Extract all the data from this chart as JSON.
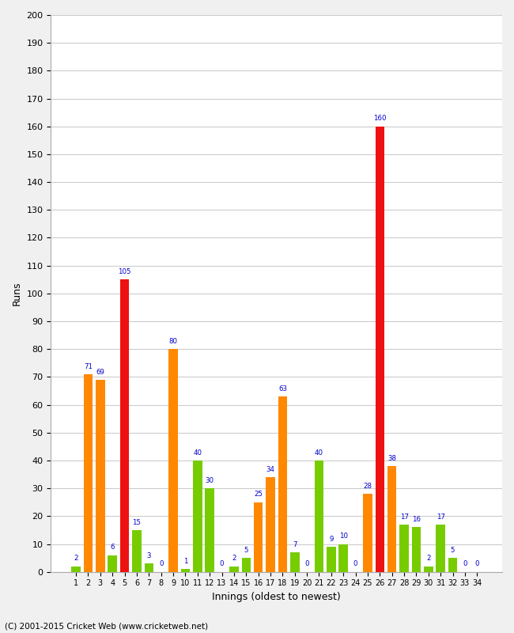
{
  "xlabel": "Innings (oldest to newest)",
  "ylabel": "Runs",
  "footer": "(C) 2001-2015 Cricket Web (www.cricketweb.net)",
  "ylim": [
    0,
    200
  ],
  "yticks": [
    0,
    10,
    20,
    30,
    40,
    50,
    60,
    70,
    80,
    90,
    100,
    110,
    120,
    130,
    140,
    150,
    160,
    170,
    180,
    190,
    200
  ],
  "innings": [
    1,
    2,
    3,
    4,
    5,
    6,
    7,
    8,
    9,
    10,
    11,
    12,
    13,
    14,
    15,
    16,
    17,
    18,
    19,
    20,
    21,
    22,
    23,
    24,
    25,
    26,
    27,
    28,
    29,
    30,
    31,
    32,
    33,
    34
  ],
  "values": [
    2,
    71,
    69,
    6,
    105,
    15,
    3,
    0,
    80,
    1,
    40,
    30,
    0,
    2,
    5,
    25,
    34,
    63,
    7,
    0,
    40,
    9,
    10,
    0,
    28,
    160,
    38,
    17,
    16,
    2,
    17,
    5,
    0,
    0
  ],
  "colors": [
    "green",
    "orange",
    "orange",
    "green",
    "red",
    "green",
    "green",
    "green",
    "orange",
    "green",
    "green",
    "green",
    "green",
    "green",
    "green",
    "orange",
    "orange",
    "orange",
    "green",
    "green",
    "green",
    "green",
    "green",
    "green",
    "orange",
    "red",
    "orange",
    "green",
    "green",
    "green",
    "green",
    "green",
    "green",
    "green"
  ],
  "label_color": "#0000cc",
  "bg_color": "#f0f0f0",
  "plot_bg": "#ffffff",
  "grid_color": "#cccccc",
  "color_map": {
    "green": "#77cc00",
    "orange": "#ff8800",
    "red": "#ee1111"
  }
}
